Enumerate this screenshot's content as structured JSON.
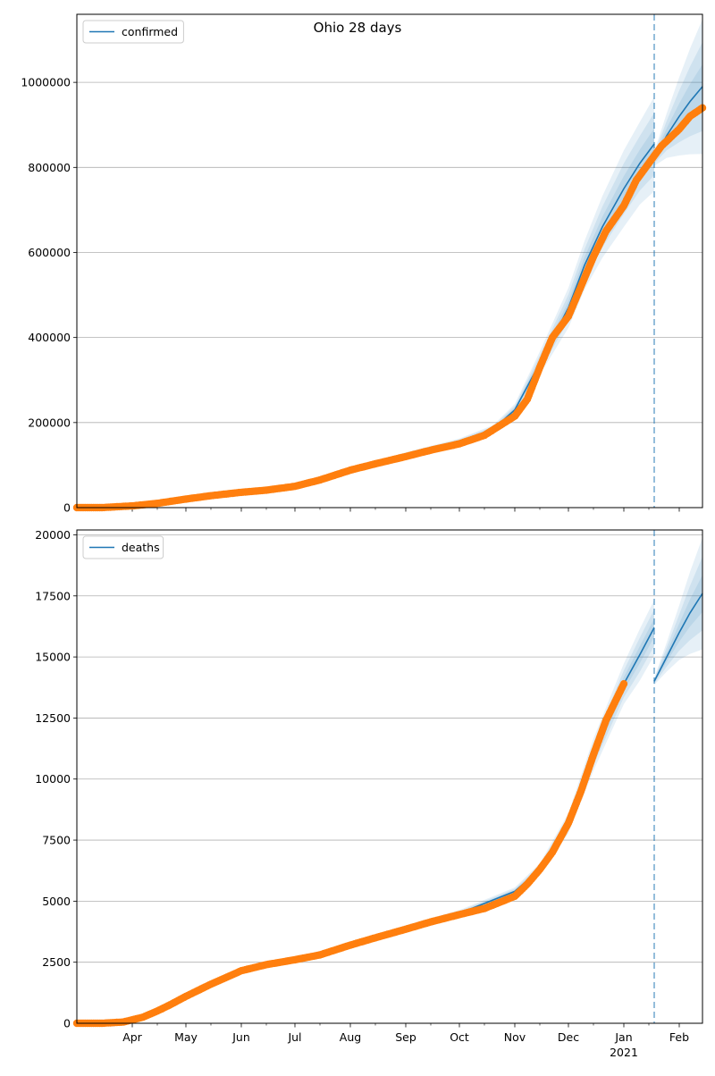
{
  "suptitle": "Ohio 28 days",
  "colors": {
    "model": "#1f77b4",
    "observed": "#ff7f0e",
    "band": "#1f77b4",
    "grid": "#b0b0b0",
    "divider": "#1f77b4"
  },
  "chart_data": [
    {
      "type": "line",
      "title": "",
      "legend": {
        "location": "upper-left",
        "entries": [
          "confirmed"
        ]
      },
      "xlabel": "",
      "ylabel": "",
      "xlim": [
        "2020-03-01",
        "2021-02-14"
      ],
      "ylim": [
        0,
        1160000
      ],
      "yticks": [
        0,
        200000,
        400000,
        600000,
        800000,
        1000000
      ],
      "ytick_labels": [
        "0",
        "200000",
        "400000",
        "600000",
        "800000",
        "1000000"
      ],
      "xticks": [],
      "grid": "y",
      "forecast_start": "2021-01-18",
      "series": [
        {
          "name": "confirmed",
          "role": "model",
          "x": [
            "2020-03-01",
            "2020-04-01",
            "2020-05-01",
            "2020-06-01",
            "2020-07-01",
            "2020-08-01",
            "2020-09-01",
            "2020-10-01",
            "2020-10-20",
            "2020-11-01",
            "2020-11-15",
            "2020-12-01",
            "2020-12-10",
            "2020-12-20",
            "2021-01-01",
            "2021-01-10",
            "2021-01-18"
          ],
          "y": [
            0,
            5000,
            20000,
            35000,
            50000,
            90000,
            125000,
            155000,
            185000,
            230000,
            340000,
            470000,
            570000,
            660000,
            750000,
            810000,
            855000
          ],
          "band_halfwidth_fraction": [
            0,
            0.02,
            0.03,
            0.03,
            0.03,
            0.04,
            0.04,
            0.05,
            0.05,
            0.06,
            0.08,
            0.1,
            0.1,
            0.11,
            0.12,
            0.12,
            0.13
          ]
        },
        {
          "role": "model",
          "x": [
            "2021-01-18",
            "2021-01-25",
            "2021-02-01",
            "2021-02-07",
            "2021-02-14"
          ],
          "y": [
            820000,
            875000,
            920000,
            955000,
            990000
          ],
          "band_halfwidth_fraction": [
            0.02,
            0.06,
            0.1,
            0.13,
            0.16
          ]
        },
        {
          "role": "observed",
          "x": [
            "2020-03-01",
            "2020-03-15",
            "2020-04-01",
            "2020-04-15",
            "2020-05-01",
            "2020-05-15",
            "2020-06-01",
            "2020-06-15",
            "2020-07-01",
            "2020-07-15",
            "2020-08-01",
            "2020-08-15",
            "2020-09-01",
            "2020-09-15",
            "2020-10-01",
            "2020-10-15",
            "2020-11-01",
            "2020-11-08",
            "2020-11-15",
            "2020-11-22",
            "2020-12-01",
            "2020-12-08",
            "2020-12-15",
            "2020-12-22",
            "2021-01-01",
            "2021-01-08",
            "2021-01-15",
            "2021-01-22",
            "2021-02-01",
            "2021-02-07",
            "2021-02-14"
          ],
          "y": [
            0,
            0,
            4000,
            10000,
            20000,
            28000,
            36000,
            41000,
            50000,
            65000,
            88000,
            103000,
            120000,
            135000,
            150000,
            170000,
            215000,
            255000,
            330000,
            400000,
            450000,
            520000,
            590000,
            650000,
            710000,
            770000,
            810000,
            850000,
            890000,
            920000,
            940000
          ]
        }
      ]
    },
    {
      "type": "line",
      "title": "",
      "legend": {
        "location": "upper-left",
        "entries": [
          "deaths"
        ]
      },
      "xlabel": "",
      "ylabel": "",
      "xlim": [
        "2020-03-01",
        "2021-02-14"
      ],
      "ylim": [
        0,
        20200
      ],
      "yticks": [
        0,
        2500,
        5000,
        7500,
        10000,
        12500,
        15000,
        17500,
        20000
      ],
      "ytick_labels": [
        "0",
        "2500",
        "5000",
        "7500",
        "10000",
        "12500",
        "15000",
        "17500",
        "20000"
      ],
      "xticks": [
        "2020-04-01",
        "2020-05-01",
        "2020-06-01",
        "2020-07-01",
        "2020-08-01",
        "2020-09-01",
        "2020-10-01",
        "2020-11-01",
        "2020-12-01",
        "2021-01-01",
        "2021-02-01"
      ],
      "xtick_labels": [
        "Apr",
        "May",
        "Jun",
        "Jul",
        "Aug",
        "Sep",
        "Oct",
        "Nov",
        "Dec",
        "Jan",
        "Feb"
      ],
      "xtick_sublabel": {
        "at": "2021-01-01",
        "text": "2021"
      },
      "grid": "y",
      "forecast_start": "2021-01-18",
      "series": [
        {
          "name": "deaths",
          "role": "model",
          "x": [
            "2020-03-01",
            "2020-04-01",
            "2020-05-01",
            "2020-06-01",
            "2020-07-01",
            "2020-08-01",
            "2020-09-01",
            "2020-10-01",
            "2020-11-01",
            "2020-11-15",
            "2020-12-01",
            "2020-12-15",
            "2021-01-01",
            "2021-01-10",
            "2021-01-18"
          ],
          "y": [
            0,
            150,
            1150,
            2150,
            2600,
            3200,
            3900,
            4500,
            5400,
            6300,
            8200,
            11000,
            13900,
            15100,
            16200
          ],
          "band_halfwidth_fraction": [
            0,
            0.03,
            0.03,
            0.03,
            0.03,
            0.03,
            0.03,
            0.03,
            0.03,
            0.04,
            0.05,
            0.06,
            0.06,
            0.07,
            0.07
          ]
        },
        {
          "role": "model",
          "x": [
            "2021-01-18",
            "2021-01-25",
            "2021-02-01",
            "2021-02-07",
            "2021-02-14"
          ],
          "y": [
            14000,
            15000,
            16000,
            16800,
            17600
          ],
          "band_halfwidth_fraction": [
            0.01,
            0.04,
            0.07,
            0.1,
            0.13
          ]
        },
        {
          "role": "observed",
          "x": [
            "2020-03-01",
            "2020-03-15",
            "2020-03-27",
            "2020-04-07",
            "2020-04-15",
            "2020-04-22",
            "2020-05-01",
            "2020-05-15",
            "2020-06-01",
            "2020-06-15",
            "2020-07-01",
            "2020-07-15",
            "2020-08-01",
            "2020-08-15",
            "2020-09-01",
            "2020-09-15",
            "2020-10-01",
            "2020-10-15",
            "2020-11-01",
            "2020-11-08",
            "2020-11-15",
            "2020-11-22",
            "2020-12-01",
            "2020-12-08",
            "2020-12-15",
            "2020-12-22",
            "2021-01-01"
          ],
          "y": [
            0,
            0,
            50,
            250,
            500,
            750,
            1100,
            1600,
            2150,
            2400,
            2600,
            2800,
            3200,
            3500,
            3850,
            4150,
            4450,
            4700,
            5200,
            5700,
            6300,
            7000,
            8200,
            9500,
            11000,
            12400,
            13900
          ]
        }
      ]
    }
  ]
}
